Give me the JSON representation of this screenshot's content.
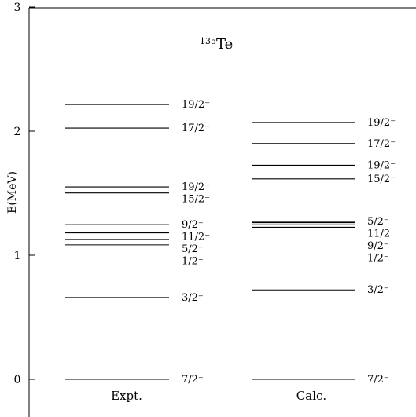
{
  "chart_data": {
    "type": "level-scheme",
    "title_mass": "135",
    "title_element": "Te",
    "ylabel": "E(MeV)",
    "ylim": [
      -0.3,
      3.0
    ],
    "yticks": [
      "0",
      "1",
      "2",
      "3"
    ],
    "columns": [
      {
        "name": "Expt.",
        "levels": [
          {
            "energy": 0.0,
            "spin": "7/2⁻"
          },
          {
            "energy": 0.659,
            "spin": "3/2⁻"
          },
          {
            "energy": 1.083,
            "spin": "1/2⁻"
          },
          {
            "energy": 1.127,
            "spin": "5/2⁻"
          },
          {
            "energy": 1.18,
            "spin": "11/2⁻"
          },
          {
            "energy": 1.246,
            "spin": "9/2⁻"
          },
          {
            "energy": 1.502,
            "spin": "15/2⁻"
          },
          {
            "energy": 1.55,
            "spin": "19/2⁻"
          },
          {
            "energy": 2.025,
            "spin": "17/2⁻"
          },
          {
            "energy": 2.215,
            "spin": "19/2⁻"
          }
        ]
      },
      {
        "name": "Calc.",
        "levels": [
          {
            "energy": 0.0,
            "spin": "7/2⁻"
          },
          {
            "energy": 0.72,
            "spin": "3/2⁻"
          },
          {
            "energy": 1.225,
            "spin": "1/2⁻"
          },
          {
            "energy": 1.245,
            "spin": "9/2⁻"
          },
          {
            "energy": 1.262,
            "spin": "11/2⁻"
          },
          {
            "energy": 1.272,
            "spin": "5/2⁻"
          },
          {
            "energy": 1.615,
            "spin": "15/2⁻"
          },
          {
            "energy": 1.725,
            "spin": "19/2⁻"
          },
          {
            "energy": 1.9,
            "spin": "17/2⁻"
          },
          {
            "energy": 2.07,
            "spin": "19/2⁻"
          }
        ]
      }
    ]
  }
}
